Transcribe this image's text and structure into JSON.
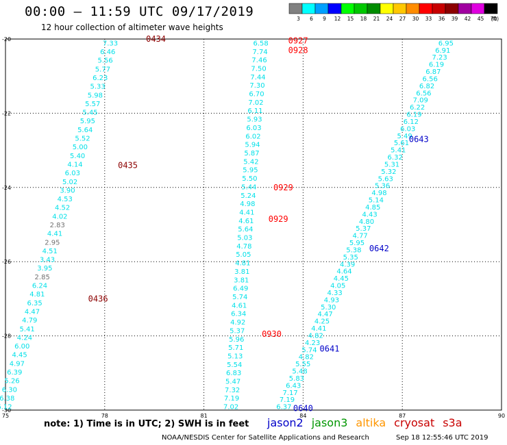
{
  "header": {
    "title": "00:00 – 11:59 UTC 09/17/2019",
    "subtitle": "12 hour collection of altimeter wave heights"
  },
  "legend": {
    "unit": "(ft)",
    "bins": [
      {
        "label": "3",
        "color": "#808080"
      },
      {
        "label": "6",
        "color": "#00ffff"
      },
      {
        "label": "9",
        "color": "#00a0ff"
      },
      {
        "label": "12",
        "color": "#0000ff"
      },
      {
        "label": "15",
        "color": "#00ff00"
      },
      {
        "label": "18",
        "color": "#00c800"
      },
      {
        "label": "21",
        "color": "#008c00"
      },
      {
        "label": "24",
        "color": "#ffff00"
      },
      {
        "label": "27",
        "color": "#ffc800"
      },
      {
        "label": "30",
        "color": "#ff8c00"
      },
      {
        "label": "33",
        "color": "#ff0000"
      },
      {
        "label": "36",
        "color": "#c80000"
      },
      {
        "label": "39",
        "color": "#8c0000"
      },
      {
        "label": "42",
        "color": "#a000a0"
      },
      {
        "label": "45",
        "color": "#e000e0"
      },
      {
        "label": "70",
        "color": "#000000"
      }
    ]
  },
  "axes": {
    "x_ticks": [
      "75",
      "78",
      "81",
      "84",
      "87",
      "90"
    ],
    "y_ticks": [
      "-20",
      "-22",
      "-24",
      "-26",
      "-28",
      "-30"
    ]
  },
  "value_colors": {
    "cyan": "#00e0e8",
    "gray": "#707070"
  },
  "chart_data": {
    "type": "scatter",
    "x_range": [
      75,
      90
    ],
    "y_range": [
      -30,
      -20
    ],
    "tracks": [
      {
        "satellite": "cryosat",
        "color": "#8c0000",
        "lon_start": 78.4,
        "lon_end": 75.2,
        "lat_start": -20.1,
        "lat_end": -29.9,
        "times": [
          {
            "label": "0434",
            "lon": 79.25,
            "lat": -20.0
          },
          {
            "label": "0435",
            "lon": 78.4,
            "lat": -23.4
          },
          {
            "label": "0436",
            "lon": 77.5,
            "lat": -27.0
          }
        ],
        "values": [
          "7.33",
          "6.46",
          "5.56",
          "5.77",
          "6.23",
          "5.33",
          "5.98",
          "5.57",
          "5.45",
          "5.95",
          "5.64",
          "5.52",
          "5.00",
          "5.40",
          "4.14",
          "6.03",
          "5.02",
          "3.90",
          "4.53",
          "4.52",
          "4.02",
          "2.83",
          "4.41",
          "2.95",
          "4.51",
          "3.43",
          "3.95",
          "2.85",
          "6.24",
          "4.81",
          "6.35",
          "4.47",
          "4.79",
          "5.41",
          "4.24",
          "6.00",
          "4.45",
          "4.97",
          "6.39",
          "5.26",
          "6.30",
          "6.38",
          "6.12"
        ],
        "gray": [
          21,
          23,
          27
        ]
      },
      {
        "satellite": "cryosat-s3a",
        "color": "#ff0000",
        "lon_start": 82.95,
        "lon_end": 82.05,
        "lat_start": -20.1,
        "lat_end": -29.9,
        "times": [
          {
            "label": "0927",
            "lon": 83.55,
            "lat": -20.05
          },
          {
            "label": "0928",
            "lon": 83.55,
            "lat": -20.3
          },
          {
            "label": "0929",
            "lon": 83.1,
            "lat": -24.0
          },
          {
            "label": "0929",
            "lon": 82.95,
            "lat": -24.85
          },
          {
            "label": "0930",
            "lon": 82.75,
            "lat": -27.95
          }
        ],
        "values": [
          "6.58",
          "7.74",
          "7.46",
          "7.50",
          "7.44",
          "7.30",
          "6.70",
          "7.02",
          "6.11",
          "5.93",
          "6.03",
          "6.02",
          "5.94",
          "5.87",
          "5.42",
          "5.95",
          "5.50",
          "5.44",
          "5.24",
          "4.98",
          "4.41",
          "4.61",
          "5.64",
          "5.03",
          "4.78",
          "5.05",
          "4.81",
          "3.81",
          "3.81",
          "6.49",
          "5.74",
          "4.61",
          "6.34",
          "4.92",
          "5.37",
          "5.96",
          "5.71",
          "5.13",
          "5.54",
          "6.83",
          "5.47",
          "7.32",
          "7.19",
          "7.02"
        ],
        "gray": []
      },
      {
        "satellite": "jason2",
        "color": "#0000c8",
        "lon_start": 88.55,
        "lon_end": 83.65,
        "lat_start": -20.1,
        "lat_end": -29.9,
        "times": [
          {
            "label": "0643",
            "lon": 87.2,
            "lat": -22.7
          },
          {
            "label": "0642",
            "lon": 86.0,
            "lat": -25.65
          },
          {
            "label": "0641",
            "lon": 84.5,
            "lat": -28.35
          },
          {
            "label": "0640",
            "lon": 83.7,
            "lat": -29.95
          }
        ],
        "values": [
          "6.95",
          "6.91",
          "7.23",
          "6.19",
          "6.87",
          "6.56",
          "6.82",
          "6.56",
          "7.09",
          "6.22",
          "6.19",
          "6.12",
          "6.03",
          "5.49",
          "5.61",
          "5.41",
          "6.32",
          "5.31",
          "5.32",
          "5.63",
          "5.36",
          "4.98",
          "5.14",
          "4.85",
          "4.43",
          "4.80",
          "5.37",
          "4.77",
          "5.95",
          "5.38",
          "5.35",
          "4.39",
          "4.64",
          "4.45",
          "4.05",
          "4.33",
          "4.93",
          "5.30",
          "4.47",
          "4.25",
          "4.41",
          "4.82",
          "4.23",
          "5.74",
          "4.82",
          "5.55",
          "5.48",
          "5.83",
          "6.43",
          "7.17",
          "7.19",
          "6.37"
        ],
        "gray": []
      }
    ]
  },
  "footer": {
    "note": "note: 1) Time is in UTC; 2) SWH is in feet",
    "satellites": [
      {
        "name": "jason2",
        "color": "#0000c8"
      },
      {
        "name": "jason3",
        "color": "#009600"
      },
      {
        "name": "altika",
        "color": "#ff9600"
      },
      {
        "name": "cryosat",
        "color": "#c80000"
      },
      {
        "name": "s3a",
        "color": "#c80000"
      }
    ],
    "credit": "NOAA/NESDIS Center for Satellite Applications and Research",
    "timestamp": "Sep 18 12:55:46 UTC 2019"
  }
}
